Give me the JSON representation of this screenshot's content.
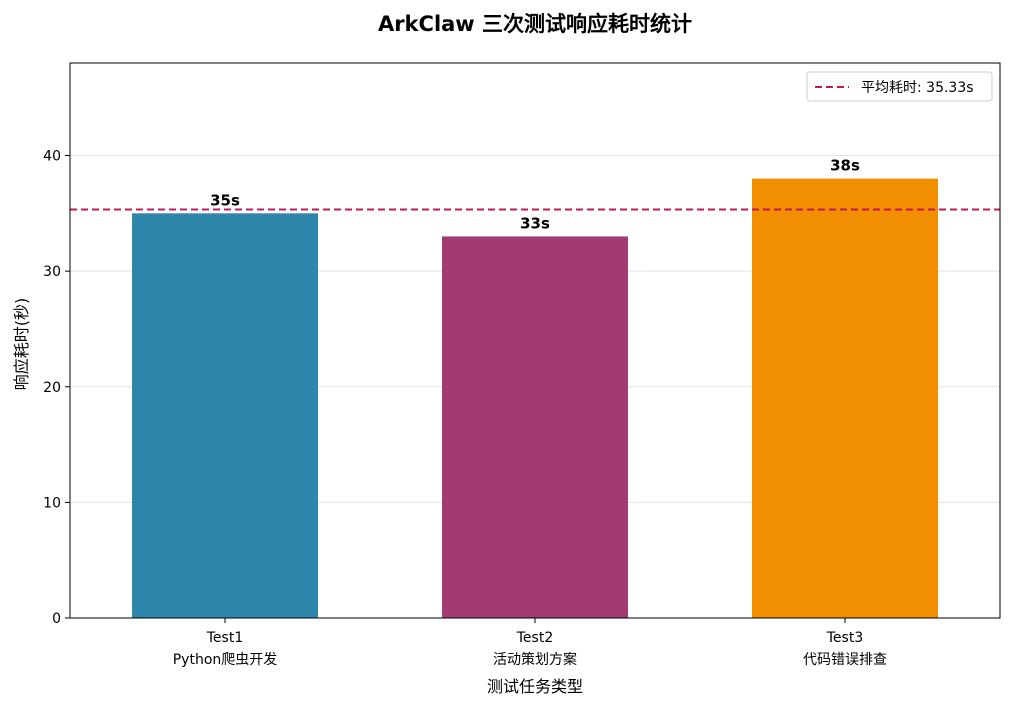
{
  "chart_data": {
    "type": "bar",
    "title": "ArkClaw 三次测试响应耗时统计",
    "xlabel": "测试任务类型",
    "ylabel": "响应耗时(秒)",
    "categories": [
      [
        "Test1",
        "Python爬虫开发"
      ],
      [
        "Test2",
        "活动策划方案"
      ],
      [
        "Test3",
        "代码错误排查"
      ]
    ],
    "values": [
      35,
      33,
      38
    ],
    "value_labels": [
      "35s",
      "33s",
      "38s"
    ],
    "bar_colors": [
      "#2e86ab",
      "#a23b72",
      "#f18f01"
    ],
    "ylim": [
      0,
      48
    ],
    "yticks": [
      0,
      10,
      20,
      30,
      40
    ],
    "grid": "y",
    "reference_line": {
      "value": 35.33,
      "label": "平均耗时: 35.33s",
      "color": "#c2185b",
      "style": "dashed"
    },
    "legend_position": "top-right"
  }
}
